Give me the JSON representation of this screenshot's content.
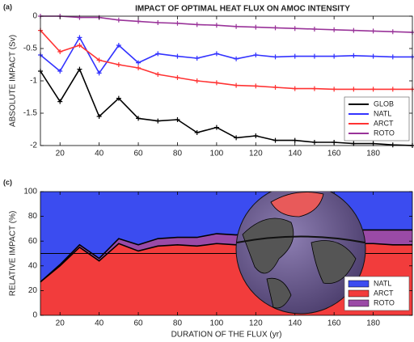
{
  "chart_data": [
    {
      "type": "line",
      "panel_label": "(a)",
      "title": "IMPACT OF OPTIMAL HEAT FLUX ON AMOC INTENSITY",
      "y_label": "ABSOLUTE IMPACT (Sv)",
      "x": [
        10,
        20,
        30,
        40,
        50,
        60,
        70,
        80,
        90,
        100,
        110,
        120,
        130,
        140,
        150,
        160,
        170,
        180,
        190,
        200
      ],
      "xlim": [
        10,
        200
      ],
      "xticks": [
        20,
        40,
        60,
        80,
        100,
        120,
        140,
        160,
        180
      ],
      "ylim": [
        -2,
        0
      ],
      "yticks": [
        -2,
        -1.5,
        -1,
        -0.5,
        0
      ],
      "legend": "lower right",
      "series": [
        {
          "name": "GLOB",
          "color": "#000000",
          "values": [
            -0.85,
            -1.32,
            -0.82,
            -1.55,
            -1.27,
            -1.58,
            -1.62,
            -1.6,
            -1.8,
            -1.72,
            -1.88,
            -1.85,
            -1.92,
            -1.92,
            -1.95,
            -1.95,
            -1.97,
            -1.97,
            -1.99,
            -2.0
          ]
        },
        {
          "name": "NATL",
          "color": "#3333ff",
          "values": [
            -0.6,
            -0.85,
            -0.33,
            -0.88,
            -0.45,
            -0.72,
            -0.58,
            -0.62,
            -0.65,
            -0.58,
            -0.66,
            -0.6,
            -0.63,
            -0.62,
            -0.62,
            -0.62,
            -0.61,
            -0.62,
            -0.63,
            -0.63
          ]
        },
        {
          "name": "ARCT",
          "color": "#ff3333",
          "values": [
            -0.22,
            -0.55,
            -0.45,
            -0.68,
            -0.75,
            -0.8,
            -0.9,
            -0.95,
            -1.0,
            -1.03,
            -1.07,
            -1.08,
            -1.1,
            -1.12,
            -1.12,
            -1.13,
            -1.13,
            -1.13,
            -1.13,
            -1.13
          ]
        },
        {
          "name": "ROTO",
          "color": "#993399",
          "values": [
            0,
            0,
            -0.02,
            -0.02,
            -0.06,
            -0.08,
            -0.1,
            -0.11,
            -0.13,
            -0.14,
            -0.16,
            -0.17,
            -0.18,
            -0.19,
            -0.2,
            -0.21,
            -0.22,
            -0.23,
            -0.24,
            -0.25
          ]
        }
      ]
    },
    {
      "type": "stacked_area",
      "panel_label": "(c)",
      "y_label": "RELATIVE IMPACT (%)",
      "x_label": "DURATION OF THE FLUX (yr)",
      "x": [
        10,
        20,
        30,
        40,
        50,
        60,
        70,
        80,
        90,
        100,
        110,
        120,
        130,
        140,
        150,
        160,
        170,
        180,
        190,
        200
      ],
      "xlim": [
        10,
        200
      ],
      "xticks": [
        20,
        40,
        60,
        80,
        100,
        120,
        140,
        160,
        180
      ],
      "ylim": [
        0,
        100
      ],
      "yticks": [
        0,
        20,
        40,
        60,
        80,
        100
      ],
      "reference_line": 50,
      "legend": "lower right",
      "series": [
        {
          "name": "NATL",
          "color": "#3b4cf0",
          "values": [
            73,
            59,
            43,
            54,
            38,
            43,
            38,
            37,
            37,
            34,
            35,
            33,
            33,
            32,
            32,
            31,
            31,
            31,
            31,
            31
          ]
        },
        {
          "name": "ARCT",
          "color": "#f23c3c",
          "values": [
            27,
            40,
            55,
            44,
            58,
            52,
            56,
            57,
            56,
            58,
            57,
            58,
            58,
            58,
            58,
            58,
            58,
            58,
            57,
            57
          ]
        },
        {
          "name": "ROTO",
          "color": "#9a4aa6",
          "values": [
            0,
            1,
            2,
            2,
            4,
            5,
            6,
            6,
            7,
            8,
            8,
            9,
            9,
            10,
            10,
            11,
            11,
            11,
            12,
            12
          ]
        }
      ]
    }
  ]
}
